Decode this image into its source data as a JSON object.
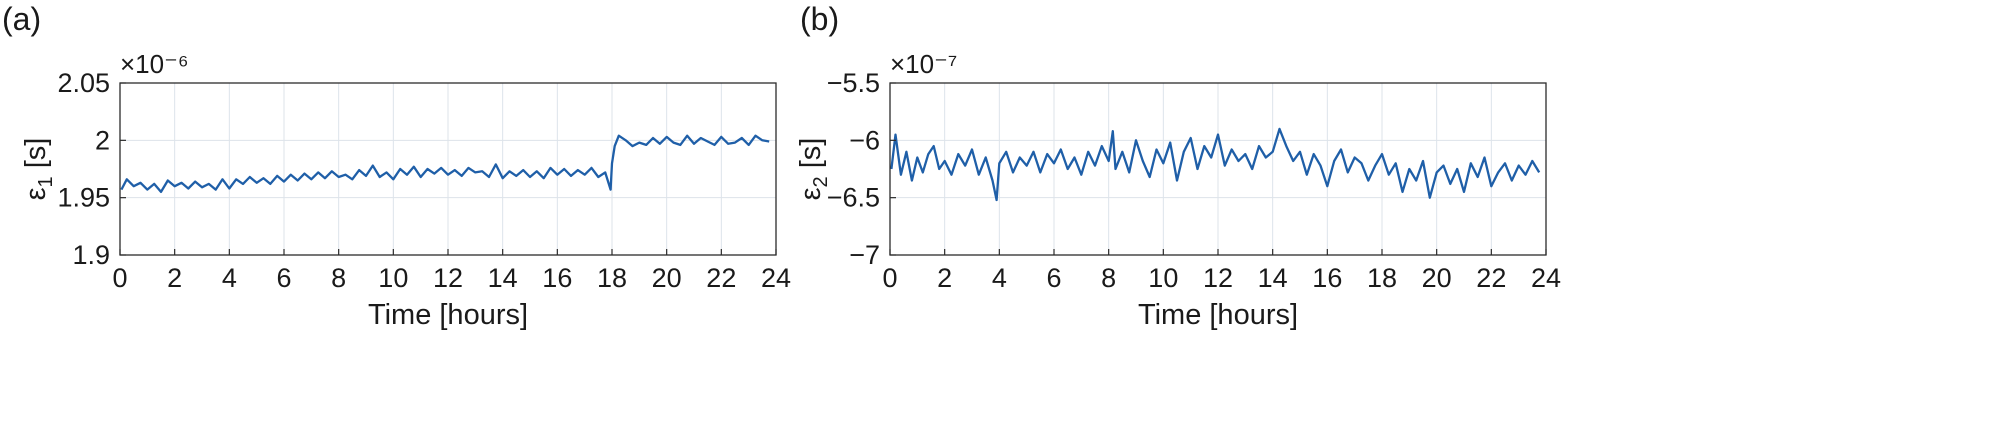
{
  "chart_data": [
    {
      "type": "line",
      "panel_label": "(a)",
      "xlabel": "Time [hours]",
      "ylabel_main": "ε",
      "ylabel_sub": "1",
      "ylabel_unit": " [s]",
      "exponent_label": "×10⁻⁶",
      "xlim": [
        0,
        24
      ],
      "ylim": [
        1.9,
        2.05
      ],
      "xticks": [
        0,
        2,
        4,
        6,
        8,
        10,
        12,
        14,
        16,
        18,
        20,
        22,
        24
      ],
      "xtick_labels": [
        "0",
        "2",
        "4",
        "6",
        "8",
        "10",
        "12",
        "14",
        "16",
        "18",
        "20",
        "22",
        "24"
      ],
      "yticks": [
        1.9,
        1.95,
        2.0,
        2.05
      ],
      "ytick_labels": [
        "1.9",
        "1.95",
        "2",
        "2.05"
      ],
      "grid": true,
      "series": [
        {
          "color": "#1f5fa8",
          "x": [
            0.05,
            0.25,
            0.5,
            0.75,
            1.0,
            1.25,
            1.5,
            1.75,
            2.0,
            2.25,
            2.5,
            2.75,
            3.0,
            3.25,
            3.5,
            3.75,
            4.0,
            4.25,
            4.5,
            4.75,
            5.0,
            5.25,
            5.5,
            5.75,
            6.0,
            6.25,
            6.5,
            6.75,
            7.0,
            7.25,
            7.5,
            7.75,
            8.0,
            8.25,
            8.5,
            8.75,
            9.0,
            9.25,
            9.5,
            9.75,
            10.0,
            10.25,
            10.5,
            10.75,
            11.0,
            11.25,
            11.5,
            11.75,
            12.0,
            12.25,
            12.5,
            12.75,
            13.0,
            13.25,
            13.5,
            13.75,
            14.0,
            14.25,
            14.5,
            14.75,
            15.0,
            15.25,
            15.5,
            15.75,
            16.0,
            16.25,
            16.5,
            16.75,
            17.0,
            17.25,
            17.5,
            17.75,
            17.95,
            18.0,
            18.1,
            18.25,
            18.5,
            18.75,
            19.0,
            19.25,
            19.5,
            19.75,
            20.0,
            20.25,
            20.5,
            20.75,
            21.0,
            21.25,
            21.5,
            21.75,
            22.0,
            22.25,
            22.5,
            22.75,
            23.0,
            23.25,
            23.5,
            23.75
          ],
          "y": [
            1.957,
            1.966,
            1.96,
            1.963,
            1.957,
            1.962,
            1.955,
            1.965,
            1.96,
            1.963,
            1.958,
            1.964,
            1.959,
            1.962,
            1.957,
            1.966,
            1.958,
            1.966,
            1.962,
            1.968,
            1.963,
            1.967,
            1.962,
            1.969,
            1.964,
            1.97,
            1.965,
            1.971,
            1.966,
            1.972,
            1.967,
            1.973,
            1.968,
            1.97,
            1.966,
            1.974,
            1.969,
            1.978,
            1.968,
            1.972,
            1.966,
            1.975,
            1.97,
            1.977,
            1.968,
            1.975,
            1.971,
            1.976,
            1.97,
            1.974,
            1.969,
            1.976,
            1.972,
            1.973,
            1.968,
            1.979,
            1.967,
            1.973,
            1.969,
            1.974,
            1.968,
            1.973,
            1.967,
            1.976,
            1.97,
            1.975,
            1.969,
            1.974,
            1.97,
            1.976,
            1.968,
            1.972,
            1.957,
            1.98,
            1.995,
            2.004,
            2.0,
            1.995,
            1.998,
            1.996,
            2.002,
            1.997,
            2.003,
            1.998,
            1.996,
            2.004,
            1.997,
            2.002,
            1.999,
            1.996,
            2.003,
            1.997,
            1.998,
            2.002,
            1.996,
            2.004,
            2.0,
            1.999
          ]
        }
      ]
    },
    {
      "type": "line",
      "panel_label": "(b)",
      "xlabel": "Time [hours]",
      "ylabel_main": "ε",
      "ylabel_sub": "2",
      "ylabel_unit": " [s]",
      "exponent_label": "×10⁻⁷",
      "xlim": [
        0,
        24
      ],
      "ylim": [
        -7.0,
        -5.5
      ],
      "xticks": [
        0,
        2,
        4,
        6,
        8,
        10,
        12,
        14,
        16,
        18,
        20,
        22,
        24
      ],
      "xtick_labels": [
        "0",
        "2",
        "4",
        "6",
        "8",
        "10",
        "12",
        "14",
        "16",
        "18",
        "20",
        "22",
        "24"
      ],
      "yticks": [
        -7.0,
        -6.5,
        -6.0,
        -5.5
      ],
      "ytick_labels": [
        "−7",
        "−6.5",
        "−6",
        "−5.5"
      ],
      "grid": true,
      "series": [
        {
          "color": "#1f5fa8",
          "x": [
            0.05,
            0.2,
            0.4,
            0.6,
            0.8,
            1.0,
            1.2,
            1.4,
            1.6,
            1.8,
            2.0,
            2.25,
            2.5,
            2.75,
            3.0,
            3.25,
            3.5,
            3.75,
            3.9,
            4.0,
            4.25,
            4.5,
            4.75,
            5.0,
            5.25,
            5.5,
            5.75,
            6.0,
            6.25,
            6.5,
            6.75,
            7.0,
            7.25,
            7.5,
            7.75,
            8.0,
            8.15,
            8.25,
            8.5,
            8.75,
            9.0,
            9.25,
            9.5,
            9.75,
            10.0,
            10.25,
            10.5,
            10.75,
            11.0,
            11.25,
            11.5,
            11.75,
            12.0,
            12.25,
            12.5,
            12.75,
            13.0,
            13.25,
            13.5,
            13.75,
            14.0,
            14.25,
            14.5,
            14.75,
            15.0,
            15.25,
            15.5,
            15.75,
            16.0,
            16.25,
            16.5,
            16.75,
            17.0,
            17.25,
            17.5,
            17.75,
            18.0,
            18.25,
            18.5,
            18.75,
            19.0,
            19.25,
            19.5,
            19.75,
            20.0,
            20.25,
            20.5,
            20.75,
            21.0,
            21.25,
            21.5,
            21.75,
            22.0,
            22.25,
            22.5,
            22.75,
            23.0,
            23.25,
            23.5,
            23.75
          ],
          "y": [
            -6.25,
            -5.95,
            -6.3,
            -6.1,
            -6.35,
            -6.15,
            -6.28,
            -6.12,
            -6.05,
            -6.25,
            -6.18,
            -6.3,
            -6.12,
            -6.22,
            -6.08,
            -6.3,
            -6.15,
            -6.35,
            -6.52,
            -6.2,
            -6.1,
            -6.28,
            -6.15,
            -6.22,
            -6.1,
            -6.28,
            -6.12,
            -6.2,
            -6.08,
            -6.25,
            -6.15,
            -6.3,
            -6.1,
            -6.22,
            -6.05,
            -6.18,
            -5.92,
            -6.25,
            -6.1,
            -6.28,
            -6.0,
            -6.18,
            -6.32,
            -6.08,
            -6.2,
            -6.02,
            -6.35,
            -6.1,
            -5.98,
            -6.25,
            -6.05,
            -6.15,
            -5.95,
            -6.22,
            -6.08,
            -6.18,
            -6.12,
            -6.25,
            -6.05,
            -6.15,
            -6.1,
            -5.9,
            -6.05,
            -6.18,
            -6.1,
            -6.3,
            -6.12,
            -6.22,
            -6.4,
            -6.18,
            -6.08,
            -6.28,
            -6.15,
            -6.2,
            -6.35,
            -6.22,
            -6.12,
            -6.3,
            -6.2,
            -6.45,
            -6.25,
            -6.35,
            -6.18,
            -6.5,
            -6.28,
            -6.22,
            -6.38,
            -6.25,
            -6.45,
            -6.2,
            -6.32,
            -6.15,
            -6.4,
            -6.28,
            -6.2,
            -6.35,
            -6.22,
            -6.3,
            -6.18,
            -6.28
          ]
        }
      ]
    }
  ]
}
